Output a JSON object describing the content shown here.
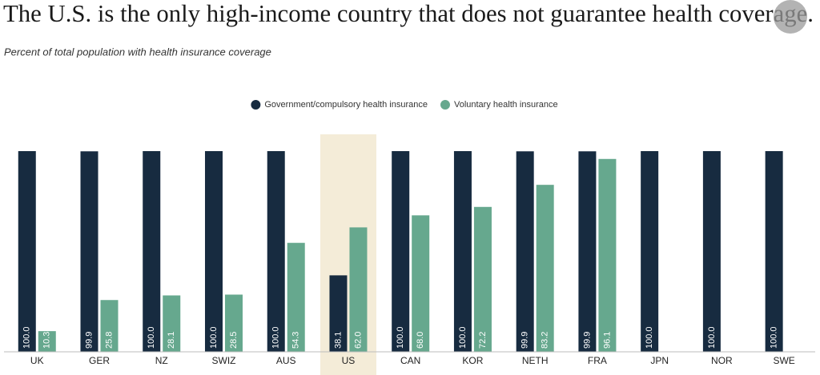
{
  "chart_data": {
    "type": "bar",
    "title": "The U.S. is the only high-income country that does not guarantee health coverage.",
    "subtitle": "Percent of total population with health insurance coverage",
    "categories": [
      "UK",
      "GER",
      "NZ",
      "SWIZ",
      "AUS",
      "US",
      "CAN",
      "KOR",
      "NETH",
      "FRA",
      "JPN",
      "NOR",
      "SWE"
    ],
    "series": [
      {
        "name": "Government/compulsory health insurance",
        "color": "#172b40",
        "values": [
          100,
          99.9,
          100,
          100,
          100,
          38.1,
          100,
          100,
          99.9,
          99.9,
          100,
          100,
          100
        ],
        "value_labels": [
          "100.0",
          "99.9",
          "100.0",
          "100.0",
          "100.0",
          "38.1",
          "100.0",
          "100.0",
          "99.9",
          "99.9",
          "100.0",
          "100.0",
          "100.0"
        ]
      },
      {
        "name": "Voluntary health insurance",
        "color": "#66a88e",
        "values": [
          10.3,
          25.8,
          28.1,
          28.5,
          54.3,
          62.0,
          68.0,
          72.2,
          83.2,
          96.1,
          null,
          null,
          null
        ],
        "value_labels": [
          "10.3",
          "25.8",
          "28.1",
          "28.5",
          "54.3",
          "62.0",
          "68.0",
          "72.2",
          "83.2",
          "96.1",
          null,
          null,
          null
        ]
      }
    ],
    "ylim": [
      0,
      100
    ],
    "highlight": {
      "category": "US",
      "color": "#f4ecd8"
    },
    "legend": "top"
  }
}
